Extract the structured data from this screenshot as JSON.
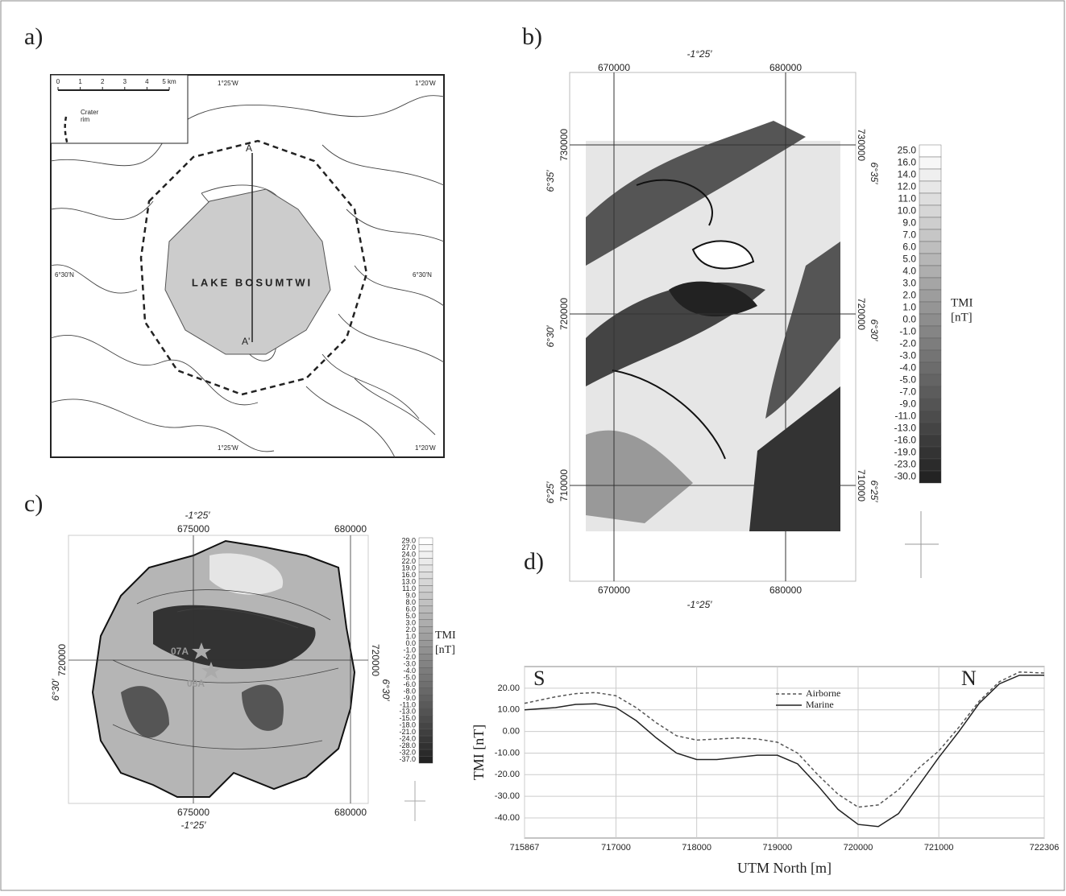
{
  "panels": {
    "a": {
      "label": "a)",
      "scale_ticks": [
        "0",
        "1",
        "2",
        "3",
        "4",
        "5 km"
      ],
      "legend": [
        "Crater",
        "rim"
      ],
      "lake_label": "LAKE BOSUMTWI",
      "coords": [
        "1°25'W",
        "1°20'W",
        "6°30'N",
        "6°30'N",
        "1°25'W",
        "1°20'W"
      ],
      "profile": [
        "A",
        "A'"
      ]
    },
    "b": {
      "label": "b)",
      "x_labels": [
        "670000",
        "680000"
      ],
      "lon": "-1°25′",
      "y_labels": [
        "730000",
        "720000",
        "710000"
      ],
      "lat": [
        "6°35′",
        "6°30′",
        "6°25′"
      ],
      "colorbar": {
        "title": [
          "TMI",
          "[nT]"
        ],
        "ticks": [
          "25.0",
          "16.0",
          "14.0",
          "12.0",
          "11.0",
          "10.0",
          "9.0",
          "7.0",
          "6.0",
          "5.0",
          "4.0",
          "3.0",
          "2.0",
          "1.0",
          "0.0",
          "-1.0",
          "-2.0",
          "-3.0",
          "-4.0",
          "-5.0",
          "-7.0",
          "-9.0",
          "-11.0",
          "-13.0",
          "-16.0",
          "-19.0",
          "-23.0",
          "-30.0"
        ]
      }
    },
    "c": {
      "label": "c)",
      "x_labels": [
        "675000",
        "680000"
      ],
      "lon": "-1°25′",
      "y_labels": [
        "720000"
      ],
      "lat": [
        "6°30′"
      ],
      "stations": [
        "07A",
        "08A"
      ],
      "colorbar": {
        "title": [
          "TMI",
          "[nT]"
        ],
        "ticks": [
          "29.0",
          "27.0",
          "24.0",
          "22.0",
          "19.0",
          "16.0",
          "13.0",
          "11.0",
          "9.0",
          "8.0",
          "6.0",
          "5.0",
          "3.0",
          "2.0",
          "1.0",
          "0.0",
          "-1.0",
          "-2.0",
          "-3.0",
          "-4.0",
          "-5.0",
          "-6.0",
          "-8.0",
          "-9.0",
          "-11.0",
          "-13.0",
          "-15.0",
          "-18.0",
          "-21.0",
          "-24.0",
          "-28.0",
          "-32.0",
          "-37.0"
        ]
      }
    },
    "d": {
      "label": "d)"
    }
  },
  "chart_data": {
    "type": "line",
    "xlabel": "UTM North [m]",
    "ylabel": "TMI [nT]",
    "annotations": [
      "S",
      "N"
    ],
    "x": [
      715867,
      716250,
      716500,
      716750,
      717000,
      717250,
      717500,
      717750,
      718000,
      718250,
      718500,
      718750,
      719000,
      719250,
      719500,
      719750,
      720000,
      720250,
      720500,
      720750,
      721000,
      721250,
      721500,
      721750,
      722000,
      722306
    ],
    "xlim": [
      715867,
      722306
    ],
    "xticks": [
      715867,
      717000,
      718000,
      719000,
      720000,
      721000,
      722306
    ],
    "ylim": [
      -49.3,
      30
    ],
    "yticks": [
      {
        "value": 20,
        "label": "20.00"
      },
      {
        "value": 10,
        "label": "10.00"
      },
      {
        "value": 0,
        "label": "0.00"
      },
      {
        "value": -10,
        "label": "-10.00"
      },
      {
        "value": -20,
        "label": "-20.00"
      },
      {
        "value": -30,
        "label": "-30.00"
      },
      {
        "value": -40,
        "label": "-40.00"
      }
    ],
    "grid": true,
    "series": [
      {
        "name": "Airborne",
        "color": "#555555",
        "style": "dashed",
        "values": [
          13,
          16,
          17.5,
          18,
          16.5,
          11,
          4,
          -2,
          -4,
          -3.5,
          -3,
          -3.5,
          -5,
          -10,
          -20,
          -29,
          -35,
          -34,
          -27,
          -17,
          -9,
          2,
          14,
          23,
          27.5,
          27
        ]
      },
      {
        "name": "Marine",
        "color": "#222222",
        "style": "solid",
        "values": [
          10,
          11,
          12.5,
          12.8,
          11,
          5,
          -3,
          -10,
          -13,
          -13,
          -12,
          -11,
          -11,
          -15,
          -25,
          -36,
          -43,
          -44,
          -38,
          -25,
          -12,
          0,
          13,
          22,
          26,
          26
        ]
      }
    ]
  }
}
